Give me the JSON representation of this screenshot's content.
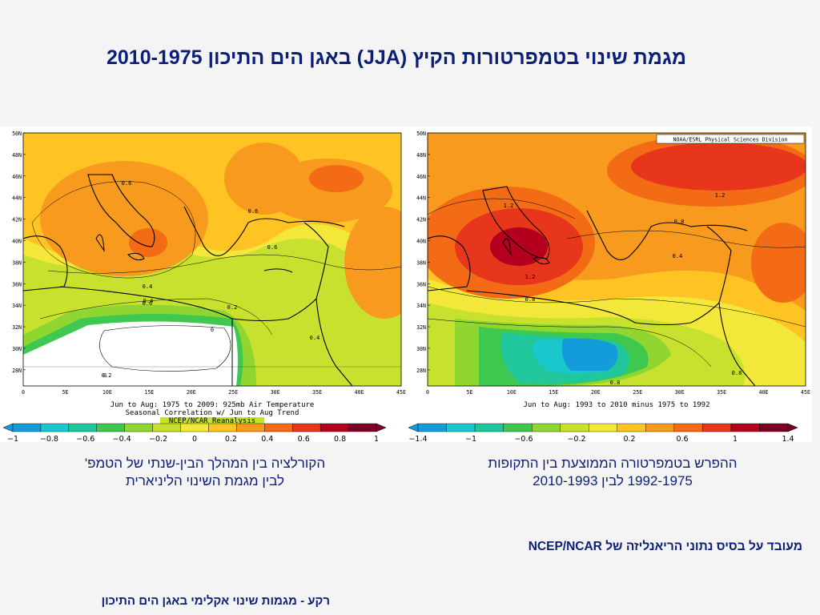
{
  "title": "מגמת שינוי בטמפרטורות הקיץ (JJA) באגן הים התיכון 2010-1975",
  "colors": {
    "title": "#0c1f78",
    "map_palette": [
      "#7a0026",
      "#b4001e",
      "#e8361c",
      "#f36b14",
      "#f79a1d",
      "#ffc324",
      "#f3e83a",
      "#c7e12e",
      "#8fd630",
      "#3fc850",
      "#20c79a",
      "#19c7cc",
      "#149bd9"
    ],
    "land_outline": "#000000"
  },
  "left_map": {
    "lat_labels": [
      "50N",
      "48N",
      "46N",
      "44N",
      "42N",
      "40N",
      "38N",
      "36N",
      "34N",
      "32N",
      "30N",
      "28N"
    ],
    "lon_labels": [
      "0",
      "5E",
      "10E",
      "15E",
      "20E",
      "25E",
      "30E",
      "35E",
      "40E",
      "45E"
    ],
    "contour_labels": [
      "0.6",
      "0.6",
      "0.4",
      "0.6",
      "0.6",
      "0.4",
      "0.2",
      "0",
      "0.2",
      "0.4",
      "0"
    ],
    "caption_lines": [
      "Jun to Aug: 1975 to 2009: 925mb Air Temperature",
      "Seasonal Correlation w/ Jun to Aug Trend",
      "NCEP/NCAR Reanalysis"
    ],
    "colorbar_ticks": [
      "−1",
      "−0.8",
      "−0.6",
      "−0.4",
      "−0.2",
      "0",
      "0.2",
      "0.4",
      "0.6",
      "0.8",
      "1"
    ]
  },
  "right_map": {
    "lat_labels": [
      "50N",
      "48N",
      "46N",
      "44N",
      "42N",
      "40N",
      "38N",
      "36N",
      "34N",
      "32N",
      "30N",
      "28N"
    ],
    "lon_labels": [
      "0",
      "5E",
      "10E",
      "15E",
      "20E",
      "25E",
      "30E",
      "35E",
      "40E",
      "45E"
    ],
    "credit": "NOAA/ESRL Physical Sciences Division",
    "contour_labels": [
      "1.2",
      "1.2",
      "1.2",
      "0.8",
      "0.4",
      "0.8",
      "0.8",
      "0.8"
    ],
    "caption_lines": [
      "Jun to Aug: 1993 to 2010 minus 1975 to 1992"
    ],
    "colorbar_ticks": [
      "−1.4",
      "−1",
      "−0.6",
      "−0.2",
      "0.2",
      "0.6",
      "1",
      "1.4"
    ]
  },
  "captions": {
    "left": [
      "הקורלציה בין המהלך הבין-שנתי של הטמפ'",
      "לבין מגמת השינוי הליניארית"
    ],
    "right": [
      "ההפרש בטמפרטורה הממוצעת בין התקופות",
      "1992-1975 לבין 2010-1993"
    ]
  },
  "source_note": "מעובד על בסיס נתוני הריאנליזה של NCEP/NCAR",
  "footer": "רקע - מגמות שינוי אקלימי באגן הים התיכון"
}
